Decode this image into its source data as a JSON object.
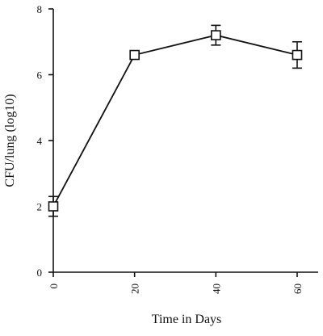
{
  "chart_data": {
    "type": "line",
    "title": "",
    "xlabel": "Time in Days",
    "ylabel": "CFU/lung (log10)",
    "x": [
      0,
      20,
      40,
      60
    ],
    "series": [
      {
        "values": [
          2.0,
          6.6,
          7.2,
          6.6
        ],
        "error": [
          0.3,
          0.0,
          0.3,
          0.4
        ],
        "marker": "open-square",
        "color": "#111111"
      }
    ],
    "xlim": [
      0,
      60
    ],
    "ylim": [
      0,
      8
    ],
    "xticks": [
      "0",
      "20",
      "40",
      "60"
    ],
    "yticks": [
      "0",
      "2",
      "4",
      "6",
      "8"
    ],
    "x_tick_labels_rotated": true,
    "grid": false,
    "legend": "none"
  }
}
